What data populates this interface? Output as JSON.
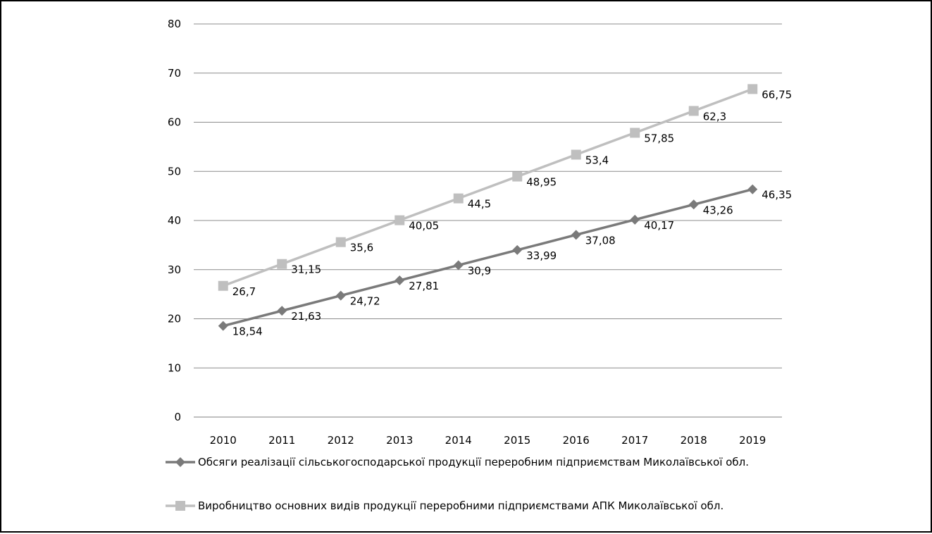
{
  "chart_data": {
    "type": "line",
    "categories": [
      "2010",
      "2011",
      "2012",
      "2013",
      "2014",
      "2015",
      "2016",
      "2017",
      "2018",
      "2019"
    ],
    "ylim": [
      0,
      80
    ],
    "yticks": [
      0,
      10,
      20,
      30,
      40,
      50,
      60,
      70,
      80
    ],
    "grid": true,
    "legend_position": "bottom",
    "series": [
      {
        "name": "Обсяги реалізації сільськогосподарської продукції переробним підприємствам Миколаївської обл.",
        "marker": "diamond",
        "color": "#7a7a7a",
        "values": [
          18.54,
          21.63,
          24.72,
          27.81,
          30.9,
          33.99,
          37.08,
          40.17,
          43.26,
          46.35
        ],
        "labels": [
          "18,54",
          "21,63",
          "24,72",
          "27,81",
          "30,9",
          "33,99",
          "37,08",
          "40,17",
          "43,26",
          "46,35"
        ]
      },
      {
        "name": "Виробництво основних видів продукції переробними підприємствами АПК  Миколаївської обл.",
        "marker": "square",
        "color": "#bfbfbf",
        "values": [
          26.7,
          31.15,
          35.6,
          40.05,
          44.5,
          48.95,
          53.4,
          57.85,
          62.3,
          66.75
        ],
        "labels": [
          "26,7",
          "31,15",
          "35,6",
          "40,05",
          "44,5",
          "48,95",
          "53,4",
          "57,85",
          "62,3",
          "66,75"
        ]
      }
    ]
  }
}
